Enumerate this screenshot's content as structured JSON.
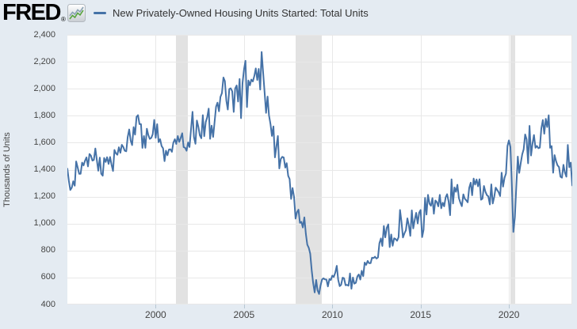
{
  "header": {
    "logo_text": "FRED",
    "registered_mark": "®",
    "legend": {
      "label": "New Privately-Owned Housing Units Started: Total Units",
      "swatch_color": "#4572a7"
    }
  },
  "colors": {
    "page_background": "#e4ebf2",
    "plot_background": "#ffffff",
    "gridline": "#e8e8e8",
    "recession_band": "#e2e2e2",
    "line": "#4572a7",
    "axis_text": "#444444"
  },
  "chart_data": {
    "type": "line",
    "title": "New Privately-Owned Housing Units Started: Total Units",
    "ylabel": "Thousands of Units",
    "xlabel": "",
    "ylim": [
      400,
      2400
    ],
    "y_ticks": [
      400,
      600,
      800,
      1000,
      1200,
      1400,
      1600,
      1800,
      2000,
      2200,
      2400
    ],
    "x_ticks": [
      2000,
      2005,
      2010,
      2015,
      2020
    ],
    "x_range": [
      1995.0,
      2023.5833
    ],
    "grid": true,
    "legend_position": "top",
    "recession_bands": [
      [
        2001.167,
        2001.833
      ],
      [
        2007.917,
        2009.417
      ],
      [
        2020.083,
        2020.333
      ]
    ],
    "series": [
      {
        "name": "New Privately-Owned Housing Units Started: Total Units",
        "units": "Thousands of Units",
        "frequency": "monthly",
        "start": "1995-01",
        "end": "2023-08",
        "values": [
          1407,
          1316,
          1249,
          1267,
          1314,
          1281,
          1461,
          1416,
          1369,
          1369,
          1452,
          1431,
          1467,
          1491,
          1424,
          1516,
          1504,
          1467,
          1472,
          1557,
          1475,
          1392,
          1489,
          1370,
          1355,
          1486,
          1457,
          1492,
          1442,
          1494,
          1437,
          1390,
          1546,
          1520,
          1510,
          1566,
          1525,
          1584,
          1567,
          1540,
          1536,
          1641,
          1698,
          1614,
          1582,
          1715,
          1660,
          1792,
          1804,
          1738,
          1737,
          1561,
          1649,
          1562,
          1704,
          1657,
          1628,
          1636,
          1663,
          1769,
          1636,
          1737,
          1604,
          1626,
          1575,
          1559,
          1463,
          1541,
          1507,
          1549,
          1551,
          1532,
          1600,
          1625,
          1590,
          1649,
          1605,
          1636,
          1670,
          1567,
          1562,
          1540,
          1602,
          1568,
          1698,
          1829,
          1642,
          1592,
          1764,
          1717,
          1655,
          1633,
          1804,
          1648,
          1753,
          1788,
          1853,
          1629,
          1726,
          1643,
          1751,
          1867,
          1897,
          1833,
          1939,
          1967,
          2083,
          2057,
          1911,
          1846,
          1998,
          2003,
          1981,
          1828,
          2002,
          2024,
          1905,
          2072,
          1782,
          2042,
          2144,
          2207,
          1864,
          2061,
          2025,
          2068,
          2054,
          2095,
          2151,
          2065,
          2147,
          1994,
          2273,
          2119,
          1969,
          1821,
          1942,
          1802,
          1737,
          1650,
          1720,
          1491,
          1570,
          1649,
          1409,
          1480,
          1495,
          1490,
          1415,
          1448,
          1354,
          1330,
          1183,
          1264,
          1197,
          1037,
          1084,
          1103,
          1005,
          1013,
          971,
          1046,
          923,
          844,
          820,
          777,
          652,
          560,
          490,
          582,
          505,
          478,
          540,
          585,
          594,
          586,
          585,
          534,
          588,
          581,
          614,
          604,
          636,
          687,
          583,
          536,
          546,
          599,
          594,
          543,
          545,
          539,
          630,
          517,
          600,
          554,
          561,
          608,
          623,
          585,
          650,
          610,
          711,
          694,
          723,
          706,
          706,
          747,
          744,
          754,
          741,
          749,
          854,
          890,
          834,
          982,
          898,
          969,
          994,
          826,
          919,
          835,
          891,
          885,
          873,
          899,
          1101,
          1010,
          897,
          928,
          950,
          1039,
          984,
          909,
          1098,
          964,
          1028,
          1080,
          1001,
          1081,
          1101,
          900,
          954,
          1190,
          1067,
          1213,
          1147,
          1132,
          1189,
          1073,
          1171,
          1160,
          1128,
          1213,
          1113,
          1155,
          1128,
          1195,
          1218,
          1164,
          1062,
          1328,
          1149,
          1268,
          1236,
          1288,
          1189,
          1154,
          1129,
          1217,
          1185,
          1172,
          1158,
          1265,
          1303,
          1210,
          1334,
          1290,
          1327,
          1276,
          1329,
          1177,
          1184,
          1279,
          1237,
          1211,
          1202,
          1142,
          1291,
          1149,
          1199,
          1267,
          1249,
          1233,
          1204,
          1377,
          1274,
          1340,
          1371,
          1576,
          1617,
          1567,
          1269,
          938,
          1046,
          1273,
          1497,
          1376,
          1448,
          1514,
          1551,
          1661,
          1625,
          1447,
          1725,
          1505,
          1594,
          1657,
          1562,
          1576,
          1559,
          1563,
          1706,
          1768,
          1666,
          1777,
          1716,
          1803,
          1562,
          1575,
          1377,
          1508,
          1463,
          1432,
          1419,
          1348,
          1340,
          1436,
          1380,
          1348,
          1583,
          1418,
          1452,
          1283
        ]
      }
    ]
  }
}
